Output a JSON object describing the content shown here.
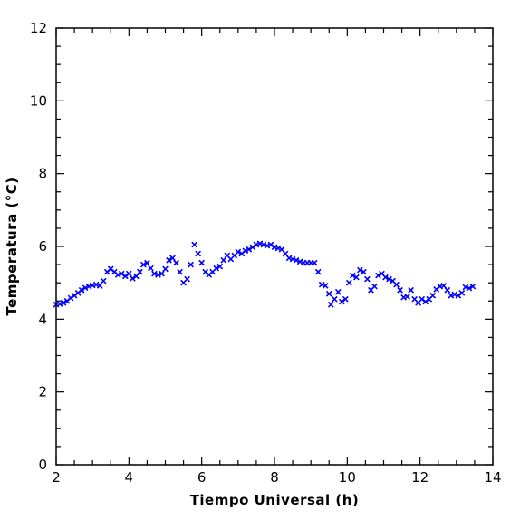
{
  "chart_data": {
    "type": "scatter",
    "xlabel": "Tiempo Universal (h)",
    "ylabel": "Temperatura (°C)",
    "xlim": [
      2,
      14
    ],
    "ylim": [
      0,
      12
    ],
    "x_ticks": [
      "2",
      "4",
      "6",
      "8",
      "10",
      "12",
      "14"
    ],
    "y_ticks": [
      "0",
      "2",
      "4",
      "6",
      "8",
      "10",
      "12"
    ],
    "x_minor_step": 0.5,
    "y_minor_step": 0.5,
    "grid": false,
    "marker": "x",
    "series": [
      {
        "color": "#0000ff",
        "points": [
          [
            2.0,
            4.4
          ],
          [
            2.1,
            4.42
          ],
          [
            2.2,
            4.45
          ],
          [
            2.3,
            4.5
          ],
          [
            2.4,
            4.58
          ],
          [
            2.5,
            4.65
          ],
          [
            2.6,
            4.72
          ],
          [
            2.7,
            4.8
          ],
          [
            2.8,
            4.86
          ],
          [
            2.9,
            4.9
          ],
          [
            3.0,
            4.93
          ],
          [
            3.1,
            4.95
          ],
          [
            3.2,
            4.92
          ],
          [
            3.3,
            5.05
          ],
          [
            3.4,
            5.3
          ],
          [
            3.5,
            5.38
          ],
          [
            3.6,
            5.3
          ],
          [
            3.7,
            5.22
          ],
          [
            3.8,
            5.25
          ],
          [
            3.9,
            5.18
          ],
          [
            4.0,
            5.25
          ],
          [
            4.1,
            5.12
          ],
          [
            4.2,
            5.18
          ],
          [
            4.3,
            5.3
          ],
          [
            4.4,
            5.5
          ],
          [
            4.5,
            5.55
          ],
          [
            4.6,
            5.4
          ],
          [
            4.7,
            5.25
          ],
          [
            4.8,
            5.22
          ],
          [
            4.9,
            5.25
          ],
          [
            5.0,
            5.38
          ],
          [
            5.1,
            5.62
          ],
          [
            5.2,
            5.68
          ],
          [
            5.3,
            5.55
          ],
          [
            5.4,
            5.3
          ],
          [
            5.5,
            5.0
          ],
          [
            5.6,
            5.1
          ],
          [
            5.7,
            5.5
          ],
          [
            5.8,
            6.05
          ],
          [
            5.9,
            5.8
          ],
          [
            6.0,
            5.55
          ],
          [
            6.1,
            5.3
          ],
          [
            6.2,
            5.22
          ],
          [
            6.3,
            5.3
          ],
          [
            6.4,
            5.4
          ],
          [
            6.5,
            5.45
          ],
          [
            6.6,
            5.62
          ],
          [
            6.7,
            5.75
          ],
          [
            6.8,
            5.65
          ],
          [
            6.9,
            5.75
          ],
          [
            7.0,
            5.85
          ],
          [
            7.1,
            5.8
          ],
          [
            7.2,
            5.88
          ],
          [
            7.3,
            5.92
          ],
          [
            7.4,
            5.98
          ],
          [
            7.5,
            6.05
          ],
          [
            7.6,
            6.08
          ],
          [
            7.7,
            6.05
          ],
          [
            7.8,
            6.02
          ],
          [
            7.9,
            6.05
          ],
          [
            8.0,
            5.98
          ],
          [
            8.1,
            5.95
          ],
          [
            8.2,
            5.92
          ],
          [
            8.3,
            5.8
          ],
          [
            8.4,
            5.68
          ],
          [
            8.5,
            5.65
          ],
          [
            8.6,
            5.62
          ],
          [
            8.7,
            5.58
          ],
          [
            8.8,
            5.55
          ],
          [
            8.9,
            5.55
          ],
          [
            9.0,
            5.55
          ],
          [
            9.1,
            5.55
          ],
          [
            9.2,
            5.3
          ],
          [
            9.3,
            4.95
          ],
          [
            9.4,
            4.92
          ],
          [
            9.5,
            4.7
          ],
          [
            9.55,
            4.4
          ],
          [
            9.65,
            4.55
          ],
          [
            9.75,
            4.75
          ],
          [
            9.85,
            4.48
          ],
          [
            9.95,
            4.55
          ],
          [
            10.05,
            5.0
          ],
          [
            10.15,
            5.2
          ],
          [
            10.25,
            5.15
          ],
          [
            10.35,
            5.35
          ],
          [
            10.45,
            5.3
          ],
          [
            10.55,
            5.1
          ],
          [
            10.65,
            4.8
          ],
          [
            10.75,
            4.9
          ],
          [
            10.85,
            5.2
          ],
          [
            10.95,
            5.25
          ],
          [
            11.05,
            5.15
          ],
          [
            11.15,
            5.1
          ],
          [
            11.25,
            5.05
          ],
          [
            11.35,
            4.95
          ],
          [
            11.45,
            4.8
          ],
          [
            11.55,
            4.6
          ],
          [
            11.65,
            4.62
          ],
          [
            11.75,
            4.8
          ],
          [
            11.85,
            4.55
          ],
          [
            11.95,
            4.45
          ],
          [
            12.05,
            4.55
          ],
          [
            12.15,
            4.48
          ],
          [
            12.25,
            4.55
          ],
          [
            12.35,
            4.65
          ],
          [
            12.45,
            4.82
          ],
          [
            12.55,
            4.9
          ],
          [
            12.65,
            4.92
          ],
          [
            12.75,
            4.8
          ],
          [
            12.85,
            4.65
          ],
          [
            12.95,
            4.68
          ],
          [
            13.05,
            4.65
          ],
          [
            13.15,
            4.72
          ],
          [
            13.25,
            4.88
          ],
          [
            13.35,
            4.85
          ],
          [
            13.45,
            4.9
          ]
        ]
      }
    ]
  }
}
